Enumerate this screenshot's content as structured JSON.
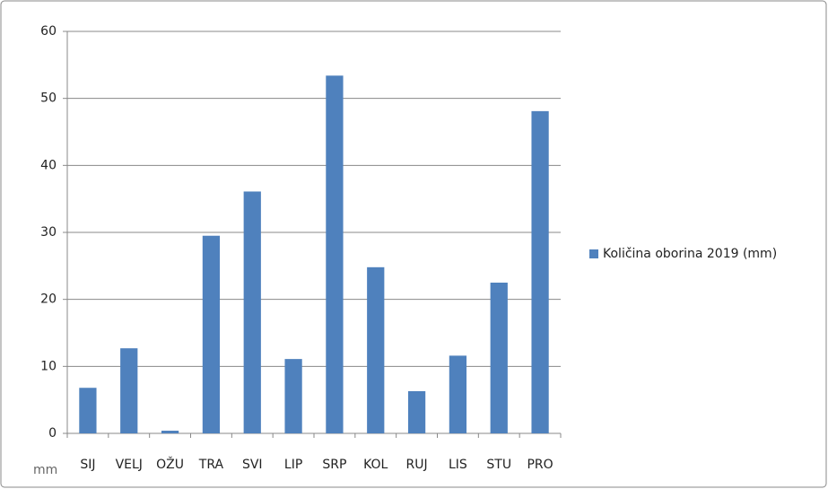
{
  "chart_data": {
    "type": "bar",
    "y_label": "mm",
    "categories": [
      "SIJ",
      "VELJ",
      "OŽU",
      "TRA",
      "SVI",
      "LIP",
      "SRP",
      "KOL",
      "RUJ",
      "LIS",
      "STU",
      "PRO"
    ],
    "series": [
      {
        "name": "Količina oborina 2019 (mm)",
        "color": "#4f81bd",
        "values": [
          6.8,
          12.7,
          0.4,
          29.5,
          36.1,
          11.1,
          53.4,
          24.8,
          6.3,
          11.6,
          22.5,
          48.1
        ]
      }
    ],
    "ylim": [
      0,
      60
    ],
    "yticks": [
      0,
      10,
      20,
      30,
      40,
      50,
      60
    ],
    "grid": true,
    "legend": "right"
  }
}
